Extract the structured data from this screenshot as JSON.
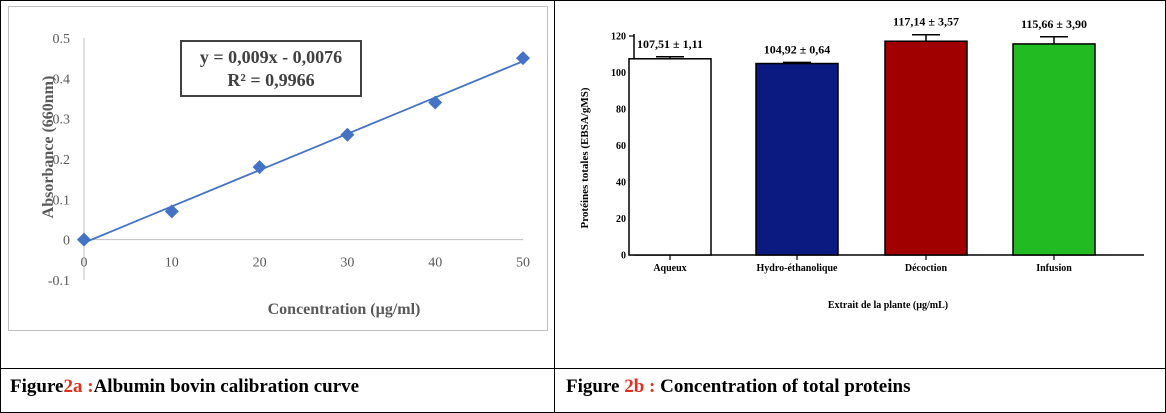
{
  "captions": {
    "left": {
      "prefix": "Figure",
      "number": "2a :",
      "title": "Albumin bovin calibration curve"
    },
    "right": {
      "prefix": "Figure ",
      "number": "2b :",
      "title": " Concentration of total proteins"
    }
  },
  "colors": {
    "caption_accent": "#e0301e"
  },
  "chart_data": [
    {
      "type": "scatter",
      "title": "",
      "xlabel": "Concentration (µg/ml)",
      "ylabel": "Absorbance (660nm)",
      "xlim": [
        0,
        50
      ],
      "ylim": [
        -0.1,
        0.5
      ],
      "x_ticks": [
        "0",
        "10",
        "20",
        "30",
        "40",
        "50"
      ],
      "y_ticks": [
        "-0.1",
        "0",
        "0.1",
        "0.2",
        "0.3",
        "0.4",
        "0.5"
      ],
      "series": [
        {
          "x": [
            0,
            10,
            20,
            30,
            40,
            50
          ],
          "y": [
            0,
            0.07,
            0.18,
            0.26,
            0.34,
            0.45
          ],
          "color": "#4472c4"
        }
      ],
      "trendline": {
        "slope": 0.009,
        "intercept": -0.0076,
        "color": "#4472c4"
      },
      "equation": {
        "line1": "y = 0,009x - 0,0076",
        "line2": "R² = 0,9966"
      },
      "grid": false
    },
    {
      "type": "bar",
      "title": "",
      "xlabel": "Extrait de la plante (µg/mL)",
      "ylabel": "Protéines totales (EBSA/gMS)",
      "ylim": [
        0,
        120
      ],
      "y_ticks": [
        "0",
        "20",
        "40",
        "60",
        "80",
        "100",
        "120"
      ],
      "categories": [
        "Aqueux",
        "Hydro-éthanolique",
        "Décoction",
        "Infusion"
      ],
      "values": [
        107.51,
        104.92,
        117.14,
        115.66
      ],
      "errors": [
        1.11,
        0.64,
        3.57,
        3.9
      ],
      "value_labels": [
        "107,51 ± 1,11",
        "104,92 ± 0,64",
        "117,14 ± 3,57",
        "115,66 ± 3,90"
      ],
      "bar_colors": [
        "#ffffff",
        "#0b1a80",
        "#a00000",
        "#22bb22"
      ],
      "grid": false
    }
  ]
}
